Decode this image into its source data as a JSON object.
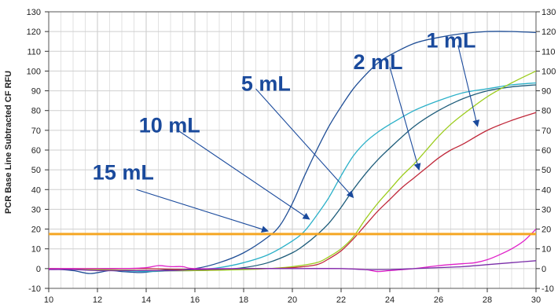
{
  "chart_data": {
    "type": "line",
    "ylabel": "PCR Base Line Subtracted CF RFU",
    "xlim": [
      10,
      30
    ],
    "ylim": [
      -10,
      130
    ],
    "x_ticks": [
      "10",
      "12",
      "14",
      "16",
      "18",
      "20",
      "22",
      "24",
      "26",
      "28",
      "30"
    ],
    "y_ticks": [
      "-10",
      "0",
      "10",
      "20",
      "30",
      "40",
      "50",
      "60",
      "70",
      "80",
      "90",
      "100",
      "110",
      "120",
      "130"
    ],
    "grid": true,
    "threshold": {
      "value": 17.5,
      "color": "#f5a623"
    },
    "series": [
      {
        "name": "15 mL",
        "color": "#1f4e96",
        "points": [
          [
            10,
            0
          ],
          [
            11,
            -1
          ],
          [
            11.7,
            -2.5
          ],
          [
            12.5,
            -1
          ],
          [
            13,
            -1.5
          ],
          [
            13.8,
            -2
          ],
          [
            14.5,
            -1
          ],
          [
            15,
            -0.5
          ],
          [
            16,
            0
          ],
          [
            17,
            3
          ],
          [
            18,
            8
          ],
          [
            19,
            16
          ],
          [
            19.5,
            22
          ],
          [
            20,
            33
          ],
          [
            20.5,
            47
          ],
          [
            21,
            60
          ],
          [
            21.5,
            72
          ],
          [
            22,
            82
          ],
          [
            22.5,
            91
          ],
          [
            23,
            98
          ],
          [
            23.5,
            104
          ],
          [
            24,
            108
          ],
          [
            25,
            114
          ],
          [
            26,
            117
          ],
          [
            27,
            119
          ],
          [
            28,
            120
          ],
          [
            29,
            120
          ],
          [
            30,
            119.5
          ]
        ]
      },
      {
        "name": "10 mL",
        "color": "#2ab0c8",
        "points": [
          [
            10,
            0
          ],
          [
            12,
            -0.5
          ],
          [
            14,
            -1.5
          ],
          [
            15,
            -1
          ],
          [
            16,
            -0.5
          ],
          [
            17,
            0.5
          ],
          [
            18,
            3
          ],
          [
            19,
            7
          ],
          [
            20,
            14
          ],
          [
            20.5,
            19
          ],
          [
            21,
            27
          ],
          [
            21.5,
            36
          ],
          [
            22,
            47
          ],
          [
            22.5,
            57
          ],
          [
            23,
            64
          ],
          [
            23.5,
            69
          ],
          [
            24,
            73
          ],
          [
            25,
            80
          ],
          [
            26,
            85
          ],
          [
            27,
            89
          ],
          [
            28,
            91
          ],
          [
            29,
            93
          ],
          [
            30,
            94
          ]
        ]
      },
      {
        "name": "5 mL",
        "color": "#1d5c7a",
        "points": [
          [
            10,
            0
          ],
          [
            12,
            -0.5
          ],
          [
            14,
            -1
          ],
          [
            16,
            -1
          ],
          [
            17,
            -0.5
          ],
          [
            18,
            0.5
          ],
          [
            19,
            3
          ],
          [
            20,
            8
          ],
          [
            20.5,
            12
          ],
          [
            21,
            17
          ],
          [
            21.5,
            23
          ],
          [
            22,
            31
          ],
          [
            22.5,
            40
          ],
          [
            23,
            48
          ],
          [
            23.5,
            55
          ],
          [
            24,
            61
          ],
          [
            25,
            72
          ],
          [
            26,
            80
          ],
          [
            27,
            86
          ],
          [
            28,
            90
          ],
          [
            29,
            92
          ],
          [
            30,
            93
          ]
        ]
      },
      {
        "name": "2 mL",
        "color": "#9ccc1c",
        "points": [
          [
            10,
            0
          ],
          [
            12,
            -0.5
          ],
          [
            14,
            -1
          ],
          [
            16,
            -1
          ],
          [
            18,
            -0.5
          ],
          [
            19,
            0
          ],
          [
            20,
            1
          ],
          [
            21,
            3
          ],
          [
            21.5,
            6
          ],
          [
            22,
            10
          ],
          [
            22.5,
            16
          ],
          [
            23,
            25
          ],
          [
            23.5,
            33
          ],
          [
            24,
            40
          ],
          [
            24.5,
            47
          ],
          [
            25,
            53
          ],
          [
            25.5,
            60
          ],
          [
            26,
            67
          ],
          [
            26.5,
            73
          ],
          [
            27,
            78
          ],
          [
            28,
            87
          ],
          [
            29,
            94
          ],
          [
            30,
            100
          ]
        ]
      },
      {
        "name": "1 mL",
        "color": "#c0283a",
        "points": [
          [
            10,
            0
          ],
          [
            12,
            0
          ],
          [
            14,
            0
          ],
          [
            16,
            -0.5
          ],
          [
            18,
            0
          ],
          [
            19,
            0
          ],
          [
            20,
            0.5
          ],
          [
            21,
            2
          ],
          [
            21.5,
            5
          ],
          [
            22,
            9
          ],
          [
            22.5,
            15
          ],
          [
            23,
            22
          ],
          [
            23.5,
            29
          ],
          [
            24,
            35
          ],
          [
            24.5,
            41
          ],
          [
            25,
            46
          ],
          [
            25.5,
            51
          ],
          [
            26,
            56
          ],
          [
            26.5,
            60
          ],
          [
            27,
            63
          ],
          [
            28,
            70
          ],
          [
            29,
            75
          ],
          [
            30,
            79
          ]
        ]
      },
      {
        "name": "",
        "color": "#e020c8",
        "points": [
          [
            10,
            0
          ],
          [
            12,
            0
          ],
          [
            13,
            0
          ],
          [
            14,
            0.5
          ],
          [
            14.5,
            1.5
          ],
          [
            15,
            1
          ],
          [
            15.5,
            1
          ],
          [
            16,
            0
          ],
          [
            18,
            0
          ],
          [
            20,
            0
          ],
          [
            21,
            0
          ],
          [
            22,
            0
          ],
          [
            23,
            -0.5
          ],
          [
            23.5,
            -1.5
          ],
          [
            24,
            -1
          ],
          [
            25,
            0
          ],
          [
            26,
            1.5
          ],
          [
            27,
            2.5
          ],
          [
            27.5,
            3
          ],
          [
            28,
            4.5
          ],
          [
            28.5,
            7
          ],
          [
            29,
            10
          ],
          [
            29.5,
            14
          ],
          [
            30,
            20
          ]
        ]
      },
      {
        "name": "",
        "color": "#7a2da8",
        "points": [
          [
            10,
            -0.5
          ],
          [
            11,
            -0.5
          ],
          [
            12,
            -1
          ],
          [
            13,
            -1
          ],
          [
            14,
            -1
          ],
          [
            15,
            -1
          ],
          [
            16,
            -0.5
          ],
          [
            18,
            0
          ],
          [
            20,
            0
          ],
          [
            22,
            0
          ],
          [
            23,
            -0.5
          ],
          [
            24,
            -0.5
          ],
          [
            25,
            0
          ],
          [
            26,
            0.5
          ],
          [
            27,
            1
          ],
          [
            28,
            2
          ],
          [
            29,
            3
          ],
          [
            30,
            4
          ]
        ]
      }
    ],
    "annotations": [
      {
        "label": "1 mL",
        "color": "#1a4a9c",
        "text_at": [
          25.5,
          112
        ],
        "arrow_from": [
          26.8,
          113
        ],
        "arrow_to": [
          27.6,
          72
        ]
      },
      {
        "label": "2 mL",
        "color": "#1a4a9c",
        "text_at": [
          22.5,
          101
        ],
        "arrow_from": [
          24.0,
          102
        ],
        "arrow_to": [
          25.2,
          50
        ]
      },
      {
        "label": "5 mL",
        "color": "#1a4a9c",
        "text_at": [
          17.9,
          90
        ],
        "arrow_from": [
          18.5,
          91
        ],
        "arrow_to": [
          22.5,
          36
        ]
      },
      {
        "label": "10 mL",
        "color": "#1a4a9c",
        "text_at": [
          13.7,
          69
        ],
        "arrow_from": [
          15.3,
          70
        ],
        "arrow_to": [
          20.7,
          25
        ]
      },
      {
        "label": "15 mL",
        "color": "#1a4a9c",
        "text_at": [
          11.8,
          45
        ],
        "arrow_from": [
          13.6,
          40
        ],
        "arrow_to": [
          19.0,
          19
        ]
      }
    ]
  }
}
